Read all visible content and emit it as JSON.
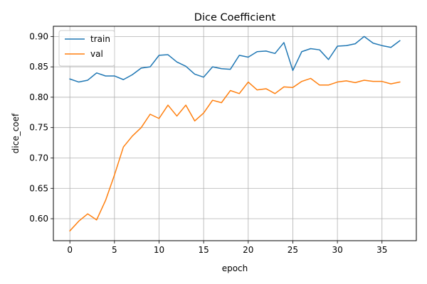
{
  "chart_data": {
    "type": "line",
    "title": "Dice Coefficient",
    "xlabel": "epoch",
    "ylabel": "dice_coef",
    "xlim": [
      -1.85,
      38.85
    ],
    "ylim": [
      0.5638,
      0.9168
    ],
    "xticks": [
      0,
      5,
      10,
      15,
      20,
      25,
      30,
      35
    ],
    "yticks": [
      0.6,
      0.65,
      0.7,
      0.75,
      0.8,
      0.85,
      0.9
    ],
    "ytick_labels": [
      "0.60",
      "0.65",
      "0.70",
      "0.75",
      "0.80",
      "0.85",
      "0.90"
    ],
    "grid": true,
    "legend_position": "upper-left",
    "x": [
      0,
      1,
      2,
      3,
      4,
      5,
      6,
      7,
      8,
      9,
      10,
      11,
      12,
      13,
      14,
      15,
      16,
      17,
      18,
      19,
      20,
      21,
      22,
      23,
      24,
      25,
      26,
      27,
      28,
      29,
      30,
      31,
      32,
      33,
      34,
      35,
      36,
      37
    ],
    "series": [
      {
        "name": "train",
        "color": "#1f77b4",
        "values": [
          0.83,
          0.825,
          0.828,
          0.84,
          0.835,
          0.835,
          0.829,
          0.837,
          0.848,
          0.85,
          0.869,
          0.87,
          0.858,
          0.851,
          0.838,
          0.833,
          0.85,
          0.847,
          0.846,
          0.869,
          0.866,
          0.875,
          0.876,
          0.872,
          0.89,
          0.844,
          0.875,
          0.88,
          0.878,
          0.862,
          0.884,
          0.885,
          0.888,
          0.9,
          0.889,
          0.885,
          0.882,
          0.893
        ]
      },
      {
        "name": "val",
        "color": "#ff7f0e",
        "values": [
          0.58,
          0.596,
          0.608,
          0.598,
          0.63,
          0.672,
          0.718,
          0.736,
          0.75,
          0.772,
          0.765,
          0.787,
          0.769,
          0.787,
          0.761,
          0.774,
          0.795,
          0.791,
          0.811,
          0.806,
          0.825,
          0.812,
          0.814,
          0.806,
          0.817,
          0.816,
          0.826,
          0.831,
          0.82,
          0.82,
          0.825,
          0.827,
          0.824,
          0.828,
          0.826,
          0.826,
          0.822,
          0.825
        ]
      }
    ]
  }
}
